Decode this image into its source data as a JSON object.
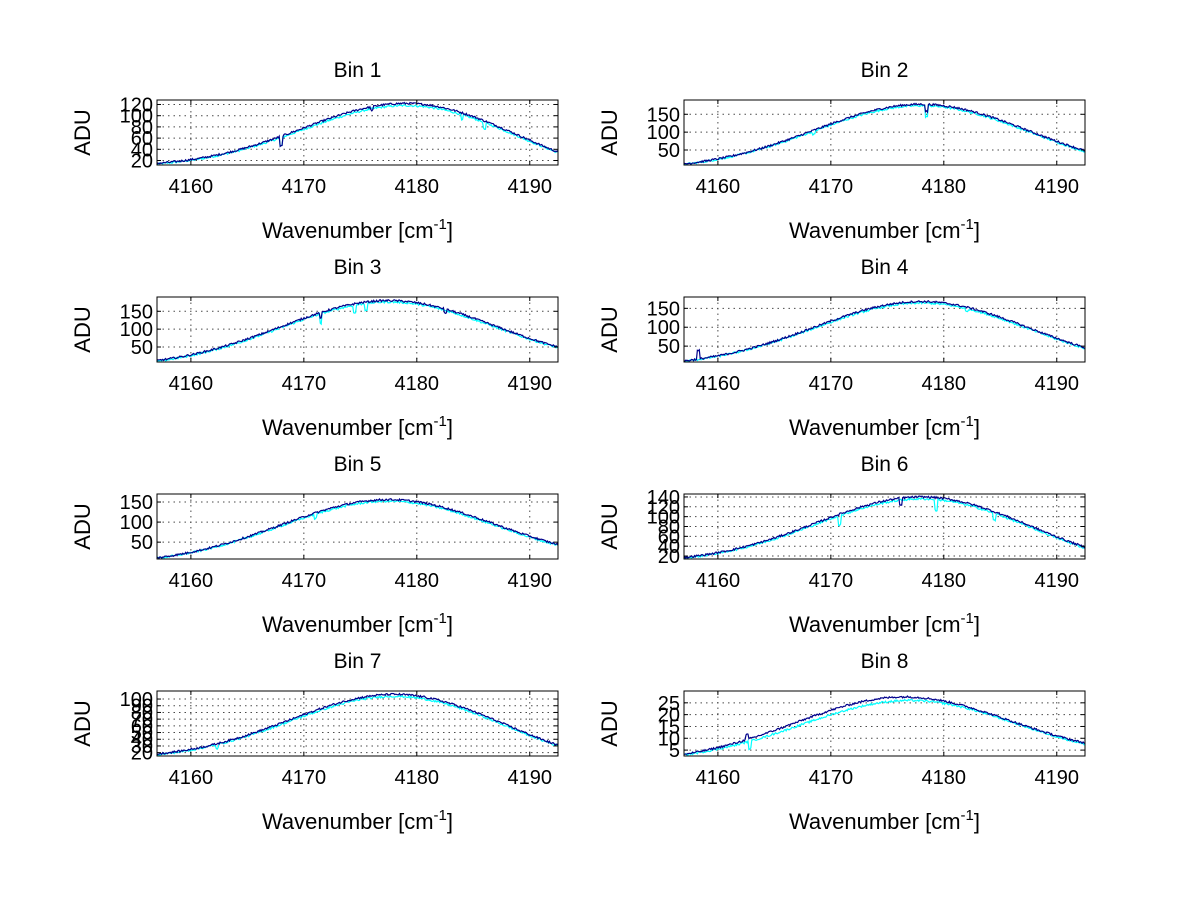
{
  "chart_data": [
    {
      "type": "line",
      "title": "Bin 1",
      "xlabel": "Wavenumber [cm",
      "xlabel_sup": "-1",
      "xlabel_end": "]",
      "ylabel": "ADU",
      "xlim": [
        4157,
        4192.5
      ],
      "ylim": [
        12,
        128
      ],
      "xticks": [
        4160,
        4170,
        4180,
        4190
      ],
      "yticks": [
        20,
        40,
        60,
        80,
        100,
        120
      ],
      "ytick_labels": [
        "20",
        "40",
        "60",
        "80",
        "100",
        "120"
      ],
      "grid": true,
      "series": [
        {
          "color": "#00ffff",
          "peak_x": 4179,
          "peak_y": 118,
          "start_y": 14,
          "end_y": 34,
          "dips": [
            [
              4168,
              15
            ],
            [
              4184,
              10
            ],
            [
              4186,
              12
            ]
          ]
        },
        {
          "color": "#00008b",
          "peak_x": 4179,
          "peak_y": 122,
          "start_y": 15,
          "end_y": 35,
          "dips": [
            [
              4168,
              18
            ],
            [
              4176,
              6
            ]
          ]
        }
      ]
    },
    {
      "type": "line",
      "title": "Bin 2",
      "xlabel": "Wavenumber [cm",
      "xlabel_sup": "-1",
      "xlabel_end": "]",
      "ylabel": "ADU",
      "xlim": [
        4157,
        4192.5
      ],
      "ylim": [
        8,
        190
      ],
      "xticks": [
        4160,
        4170,
        4180,
        4190
      ],
      "yticks": [
        50,
        100,
        150
      ],
      "ytick_labels": [
        "50",
        "100",
        "150"
      ],
      "grid": true,
      "series": [
        {
          "color": "#00ffff",
          "peak_x": 4178,
          "peak_y": 174,
          "start_y": 10,
          "end_y": 46,
          "dips": [
            [
              4178.5,
              30
            ],
            [
              4168.5,
              10
            ]
          ]
        },
        {
          "color": "#00008b",
          "peak_x": 4178,
          "peak_y": 178,
          "start_y": 11,
          "end_y": 48,
          "dips": [
            [
              4178.5,
              20
            ]
          ]
        }
      ]
    },
    {
      "type": "line",
      "title": "Bin 3",
      "xlabel": "Wavenumber [cm",
      "xlabel_sup": "-1",
      "xlabel_end": "]",
      "ylabel": "ADU",
      "xlim": [
        4157,
        4192.5
      ],
      "ylim": [
        8,
        190
      ],
      "xticks": [
        4160,
        4170,
        4180,
        4190
      ],
      "yticks": [
        50,
        100,
        150
      ],
      "ytick_labels": [
        "50",
        "100",
        "150"
      ],
      "grid": true,
      "series": [
        {
          "color": "#00ffff",
          "peak_x": 4177.5,
          "peak_y": 176,
          "start_y": 10,
          "end_y": 48,
          "dips": [
            [
              4171.5,
              28
            ],
            [
              4174.5,
              22
            ],
            [
              4175.5,
              18
            ]
          ]
        },
        {
          "color": "#00008b",
          "peak_x": 4177.5,
          "peak_y": 180,
          "start_y": 12,
          "end_y": 50,
          "dips": [
            [
              4171.5,
              18
            ],
            [
              4182.5,
              10
            ]
          ]
        }
      ]
    },
    {
      "type": "line",
      "title": "Bin 4",
      "xlabel": "Wavenumber [cm",
      "xlabel_sup": "-1",
      "xlabel_end": "]",
      "ylabel": "ADU",
      "xlim": [
        4157,
        4192.5
      ],
      "ylim": [
        8,
        180
      ],
      "xticks": [
        4160,
        4170,
        4180,
        4190
      ],
      "yticks": [
        50,
        100,
        150
      ],
      "ytick_labels": [
        "50",
        "100",
        "150"
      ],
      "grid": true,
      "series": [
        {
          "color": "#00ffff",
          "peak_x": 4178,
          "peak_y": 164,
          "start_y": 10,
          "end_y": 44,
          "dips": [
            [
              4182,
              8
            ]
          ]
        },
        {
          "color": "#00008b",
          "peak_x": 4178,
          "peak_y": 168,
          "start_y": 11,
          "end_y": 46,
          "dips": [
            [
              4158.3,
              -22
            ]
          ]
        }
      ]
    },
    {
      "type": "line",
      "title": "Bin 5",
      "xlabel": "Wavenumber [cm",
      "xlabel_sup": "-1",
      "xlabel_end": "]",
      "ylabel": "ADU",
      "xlim": [
        4157,
        4192.5
      ],
      "ylim": [
        8,
        170
      ],
      "xticks": [
        4160,
        4170,
        4180,
        4190
      ],
      "yticks": [
        50,
        100,
        150
      ],
      "ytick_labels": [
        "50",
        "100",
        "150"
      ],
      "grid": true,
      "series": [
        {
          "color": "#00ffff",
          "peak_x": 4177.5,
          "peak_y": 152,
          "start_y": 10,
          "end_y": 42,
          "dips": [
            [
              4171,
              10
            ]
          ]
        },
        {
          "color": "#00008b",
          "peak_x": 4177.5,
          "peak_y": 156,
          "start_y": 11,
          "end_y": 44,
          "dips": []
        }
      ]
    },
    {
      "type": "line",
      "title": "Bin 6",
      "xlabel": "Wavenumber [cm",
      "xlabel_sup": "-1",
      "xlabel_end": "]",
      "ylabel": "ADU",
      "xlim": [
        4157,
        4192.5
      ],
      "ylim": [
        14,
        146
      ],
      "xticks": [
        4160,
        4170,
        4180,
        4190
      ],
      "yticks": [
        20,
        40,
        60,
        80,
        100,
        120,
        140
      ],
      "ytick_labels": [
        "20",
        "40",
        "60",
        "80",
        "100",
        "120",
        "140"
      ],
      "grid": true,
      "series": [
        {
          "color": "#00ffff",
          "peak_x": 4178,
          "peak_y": 136,
          "start_y": 16,
          "end_y": 36,
          "dips": [
            [
              4170.8,
              18
            ],
            [
              4179.3,
              22
            ],
            [
              4184.5,
              14
            ]
          ]
        },
        {
          "color": "#00008b",
          "peak_x": 4178,
          "peak_y": 140,
          "start_y": 17,
          "end_y": 38,
          "dips": [
            [
              4176.2,
              14
            ]
          ]
        }
      ]
    },
    {
      "type": "line",
      "title": "Bin 7",
      "xlabel": "Wavenumber [cm",
      "xlabel_sup": "-1",
      "xlabel_end": "]",
      "ylabel": "ADU",
      "xlim": [
        4157,
        4192.5
      ],
      "ylim": [
        15,
        112
      ],
      "xticks": [
        4160,
        4170,
        4180,
        4190
      ],
      "yticks": [
        20,
        30,
        40,
        50,
        60,
        70,
        80,
        90,
        100
      ],
      "ytick_labels": [
        "20",
        "30",
        "40",
        "50",
        "60",
        "70",
        "80",
        "90",
        "100"
      ],
      "grid": true,
      "series": [
        {
          "color": "#00ffff",
          "peak_x": 4178,
          "peak_y": 104,
          "start_y": 17,
          "end_y": 30,
          "dips": [
            [
              4162.3,
              6
            ]
          ]
        },
        {
          "color": "#00008b",
          "peak_x": 4178,
          "peak_y": 107,
          "start_y": 18,
          "end_y": 31,
          "dips": []
        }
      ]
    },
    {
      "type": "line",
      "title": "Bin 8",
      "xlabel": "Wavenumber [cm",
      "xlabel_sup": "-1",
      "xlabel_end": "]",
      "ylabel": "ADU",
      "xlim": [
        4157,
        4192.5
      ],
      "ylim": [
        2.5,
        30
      ],
      "xticks": [
        4160,
        4170,
        4180,
        4190
      ],
      "yticks": [
        5,
        10,
        15,
        20,
        25
      ],
      "ytick_labels": [
        "5",
        "10",
        "15",
        "20",
        "25"
      ],
      "grid": true,
      "series": [
        {
          "color": "#00ffff",
          "peak_x": 4177,
          "peak_y": 26,
          "start_y": 3,
          "end_y": 7.5,
          "dips": [
            [
              4162.8,
              3
            ]
          ]
        },
        {
          "color": "#00008b",
          "peak_x": 4176.5,
          "peak_y": 27.5,
          "start_y": 3.2,
          "end_y": 8,
          "dips": [
            [
              4162.6,
              -2
            ]
          ]
        }
      ]
    }
  ]
}
